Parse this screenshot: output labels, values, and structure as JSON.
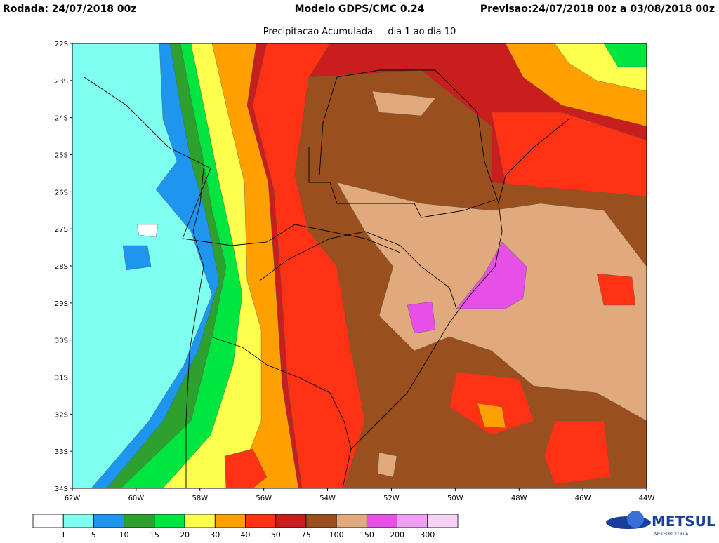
{
  "header": {
    "run": "Rodada: 24/07/2018 00z",
    "model": "Modelo GDPS/CMC 0.24",
    "forecast": "Previsao:24/07/2018 00z a 03/08/2018 00z",
    "subtitle": "Precipitacao Acumulada — dia 1 ao dia 10"
  },
  "map": {
    "lon_labels": [
      "62W",
      "60W",
      "58W",
      "56W",
      "54W",
      "52W",
      "50W",
      "48W",
      "46W",
      "44W"
    ],
    "lat_labels": [
      "22S",
      "23S",
      "24S",
      "25S",
      "26S",
      "27S",
      "28S",
      "29S",
      "30S",
      "31S",
      "32S",
      "33S",
      "34S"
    ]
  },
  "legend": {
    "bounds": [
      1,
      5,
      10,
      15,
      20,
      30,
      40,
      50,
      75,
      100,
      150,
      200,
      300
    ],
    "colors": [
      "#ffffff",
      "#7ffff0",
      "#1e96f0",
      "#2ea02e",
      "#00e640",
      "#ffff4d",
      "#ffa000",
      "#ff3214",
      "#c81e1e",
      "#99501e",
      "#e1aa7d",
      "#e650e6",
      "#f0a0f0",
      "#f5d2f5"
    ]
  },
  "logo": {
    "name": "METSUL",
    "tagline": "METEOROLOGIA"
  }
}
